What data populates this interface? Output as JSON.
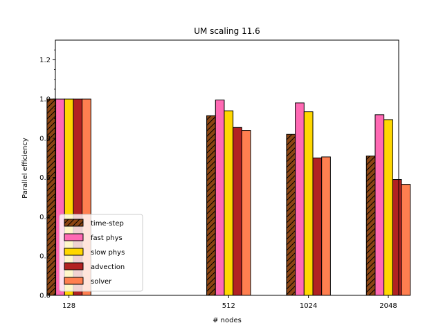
{
  "chart_data": {
    "type": "bar",
    "title": "UM scaling 11.6",
    "xlabel": "# nodes",
    "ylabel": "Parallel efficiency",
    "ylim": [
      0,
      1.3
    ],
    "yticks": [
      "0.0",
      "0.2",
      "0.4",
      "0.6",
      "0.8",
      "1.0",
      "1.2"
    ],
    "categories": [
      "128",
      "512",
      "1024",
      "2048"
    ],
    "x": [
      128,
      512,
      1024,
      2048
    ],
    "grid": false,
    "legend_position": "lower-left",
    "series": [
      {
        "name": "time-step",
        "color": "#8b4513",
        "hatch": "//",
        "values": [
          1.0,
          0.915,
          0.82,
          0.71
        ]
      },
      {
        "name": "fast phys",
        "color": "#ff69b4",
        "values": [
          1.0,
          0.995,
          0.98,
          0.92
        ]
      },
      {
        "name": "slow phys",
        "color": "#ffd700",
        "values": [
          1.0,
          0.94,
          0.935,
          0.895
        ]
      },
      {
        "name": "advection",
        "color": "#b22222",
        "values": [
          1.0,
          0.855,
          0.7,
          0.59
        ]
      },
      {
        "name": "solver",
        "color": "#ff7f50",
        "values": [
          1.0,
          0.84,
          0.705,
          0.565
        ]
      }
    ]
  }
}
